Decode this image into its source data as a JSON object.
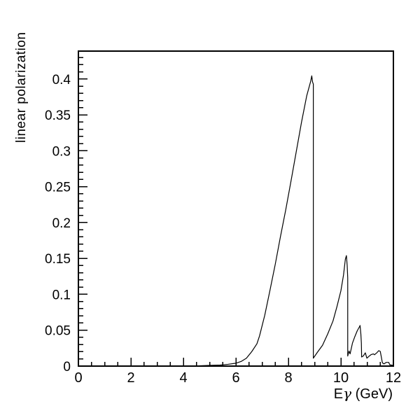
{
  "page": {
    "background_color": "#ffffff",
    "foreground_color": "#000000"
  },
  "chart_data": {
    "type": "line",
    "title": "",
    "xlabel": {
      "pre": "E",
      "gamma": "γ",
      "post": " (GeV)"
    },
    "ylabel": "linear polarization",
    "xlim": [
      0,
      12
    ],
    "ylim": [
      0,
      0.439
    ],
    "grid": false,
    "legend": "none",
    "frame": "full-box",
    "x_major_ticks": [
      0,
      2,
      4,
      6,
      8,
      10,
      12
    ],
    "x_tick_labels": [
      "0",
      "2",
      "4",
      "6",
      "8",
      "10",
      "12"
    ],
    "x_minor_step": 0.5,
    "y_major_ticks": [
      0,
      0.05,
      0.1,
      0.15,
      0.2,
      0.25,
      0.3,
      0.35,
      0.4
    ],
    "y_tick_labels": [
      "0",
      "0.05",
      "0.1",
      "0.15",
      "0.2",
      "0.25",
      "0.3",
      "0.35",
      "0.4"
    ],
    "y_minor_step": 0.01,
    "line_color": "#000000",
    "series": [
      {
        "name": "linear polarization",
        "points": [
          [
            4.5,
            0.0003
          ],
          [
            5.0,
            0.001
          ],
          [
            5.4,
            0.0015
          ],
          [
            5.7,
            0.0025
          ],
          [
            6.0,
            0.004
          ],
          [
            6.2,
            0.0065
          ],
          [
            6.4,
            0.011
          ],
          [
            6.6,
            0.02
          ],
          [
            6.8,
            0.031
          ],
          [
            6.9,
            0.042
          ],
          [
            7.1,
            0.071
          ],
          [
            7.3,
            0.106
          ],
          [
            7.5,
            0.142
          ],
          [
            7.7,
            0.181
          ],
          [
            7.9,
            0.218
          ],
          [
            8.1,
            0.258
          ],
          [
            8.3,
            0.299
          ],
          [
            8.5,
            0.34
          ],
          [
            8.7,
            0.377
          ],
          [
            8.85,
            0.397
          ],
          [
            8.89,
            0.4045
          ],
          [
            8.92,
            0.396
          ],
          [
            8.95,
            0.393
          ],
          [
            8.95,
            0.011
          ],
          [
            9.1,
            0.019
          ],
          [
            9.3,
            0.029
          ],
          [
            9.5,
            0.045
          ],
          [
            9.7,
            0.063
          ],
          [
            9.85,
            0.083
          ],
          [
            10.0,
            0.105
          ],
          [
            10.1,
            0.127
          ],
          [
            10.17,
            0.149
          ],
          [
            10.21,
            0.154
          ],
          [
            10.24,
            0.14
          ],
          [
            10.26,
            0.123
          ],
          [
            10.26,
            0.014
          ],
          [
            10.31,
            0.021
          ],
          [
            10.35,
            0.017
          ],
          [
            10.44,
            0.032
          ],
          [
            10.53,
            0.041
          ],
          [
            10.62,
            0.049
          ],
          [
            10.71,
            0.055
          ],
          [
            10.73,
            0.0566
          ],
          [
            10.76,
            0.045
          ],
          [
            10.78,
            0.032
          ],
          [
            10.79,
            0.0127
          ],
          [
            10.85,
            0.014
          ],
          [
            10.93,
            0.0185
          ],
          [
            10.99,
            0.011
          ],
          [
            11.07,
            0.0137
          ],
          [
            11.15,
            0.016
          ],
          [
            11.24,
            0.017
          ],
          [
            11.28,
            0.0158
          ],
          [
            11.38,
            0.019
          ],
          [
            11.44,
            0.0215
          ],
          [
            11.5,
            0.0205
          ],
          [
            11.54,
            0.0127
          ],
          [
            11.58,
            0.0046
          ],
          [
            11.64,
            0.003
          ],
          [
            11.73,
            0.0052
          ],
          [
            11.82,
            0.0052
          ],
          [
            11.86,
            0.002
          ],
          [
            11.95,
            0.0012
          ],
          [
            12.0,
            0.001
          ]
        ]
      }
    ]
  }
}
